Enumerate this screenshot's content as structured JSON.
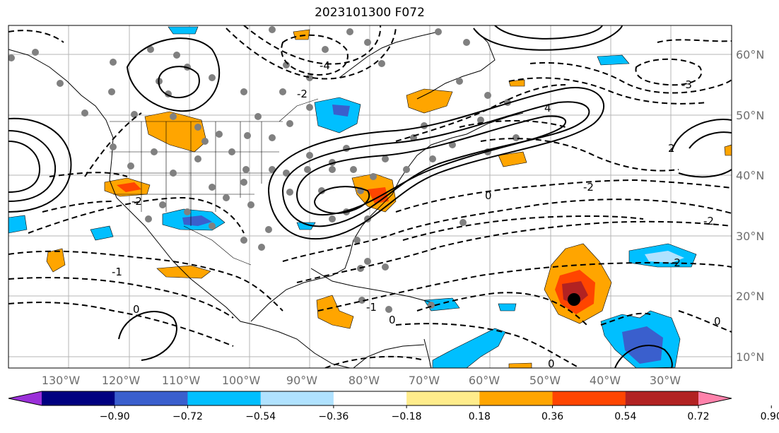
{
  "title": "2023101300 F072",
  "map": {
    "lon_ticks": [
      "130°W",
      "120°W",
      "110°W",
      "100°W",
      "90°W",
      "80°W",
      "70°W",
      "60°W",
      "50°W",
      "40°W",
      "30°W"
    ],
    "lat_ticks": [
      "60°N",
      "50°N",
      "40°N",
      "30°N",
      "20°N",
      "10°N"
    ]
  },
  "colorbar": {
    "labels": [
      "−0.90",
      "−0.72",
      "−0.54",
      "−0.36",
      "−0.18",
      "0.18",
      "0.36",
      "0.54",
      "0.72",
      "0.90"
    ],
    "colors": [
      "#9b30d9",
      "#000080",
      "#3a5fcd",
      "#00bfff",
      "#b0e2ff",
      "#ffffff",
      "#ffec8b",
      "#ffa500",
      "#ff4500",
      "#b22222",
      "#ff82ab"
    ]
  },
  "contour_labels": [
    "-4",
    "-3",
    "-2",
    "-1",
    "0",
    "2",
    "4"
  ]
}
